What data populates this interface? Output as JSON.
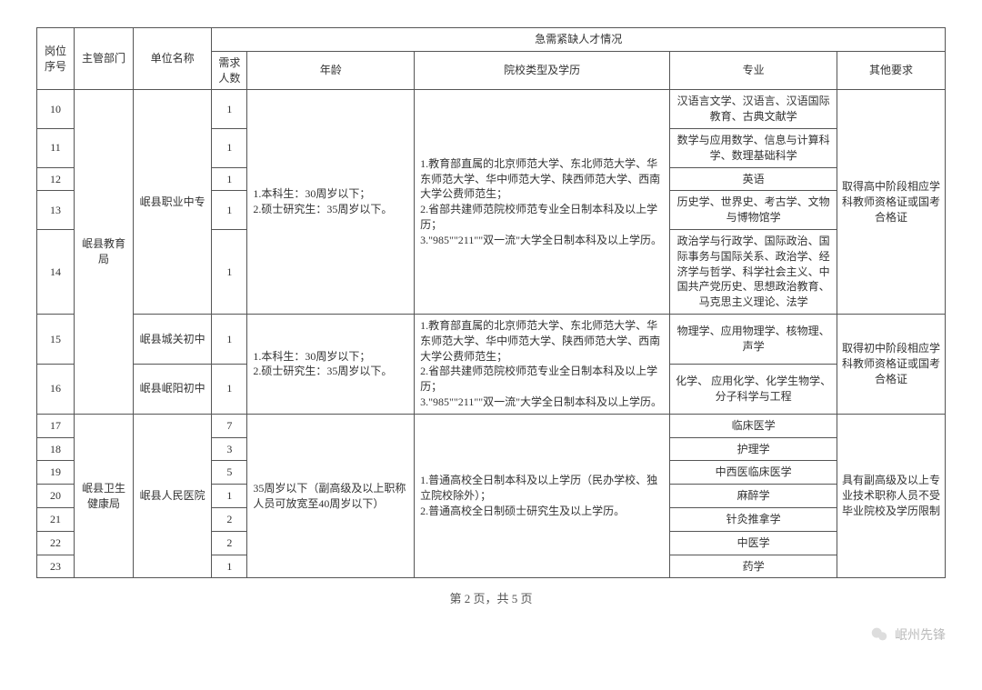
{
  "header": {
    "col_idx": "岗位序号",
    "col_dept": "主管部门",
    "col_unit": "单位名称",
    "group_title": "急需紧缺人才情况",
    "col_need": "需求人数",
    "col_age": "年龄",
    "col_school": "院校类型及学历",
    "col_major": "专业",
    "col_other": "其他要求"
  },
  "groupA": {
    "dept": "岷县教育局",
    "unit1": "岷县职业中专",
    "unit2": "岷县城关初中",
    "unit3": "岷县岷阳初中",
    "age_text": "1.本科生：30周岁以下；\n2.硕士研究生：35周岁以下。",
    "school_text": "1.教育部直属的北京师范大学、东北师范大学、华东师范大学、华中师范大学、陕西师范大学、西南大学公费师范生；\n2.省部共建师范院校师范专业全日制本科及以上学历；\n3.\"985\"\"211\"\"双一流\"大学全日制本科及以上学历。",
    "other_text1": "取得高中阶段相应学科教师资格证或国考合格证",
    "other_text2": "取得初中阶段相应学科教师资格证或国考合格证",
    "rows": [
      {
        "idx": "10",
        "need": "1",
        "major": "汉语言文学、汉语言、汉语国际教育、古典文献学"
      },
      {
        "idx": "11",
        "need": "1",
        "major": "数学与应用数学、信息与计算科学、数理基础科学"
      },
      {
        "idx": "12",
        "need": "1",
        "major": "英语"
      },
      {
        "idx": "13",
        "need": "1",
        "major": "历史学、世界史、考古学、文物与博物馆学"
      },
      {
        "idx": "14",
        "need": "1",
        "major": "政治学与行政学、国际政治、国际事务与国际关系、政治学、经济学与哲学、科学社会主义、中国共产党历史、思想政治教育、马克思主义理论、法学"
      },
      {
        "idx": "15",
        "need": "1",
        "major": "物理学、应用物理学、核物理、声学"
      },
      {
        "idx": "16",
        "need": "1",
        "major": "化学、 应用化学、化学生物学、分子科学与工程"
      }
    ]
  },
  "groupB": {
    "dept": "岷县卫生健康局",
    "unit": "岷县人民医院",
    "age_text": "35周岁以下（副高级及以上职称人员可放宽至40周岁以下）",
    "school_text": "1.普通高校全日制本科及以上学历（民办学校、独立院校除外）；\n2.普通高校全日制硕士研究生及以上学历。",
    "other_text": "具有副高级及以上专业技术职称人员不受毕业院校及学历限制",
    "rows": [
      {
        "idx": "17",
        "need": "7",
        "major": "临床医学"
      },
      {
        "idx": "18",
        "need": "3",
        "major": "护理学"
      },
      {
        "idx": "19",
        "need": "5",
        "major": "中西医临床医学"
      },
      {
        "idx": "20",
        "need": "1",
        "major": "麻醉学"
      },
      {
        "idx": "21",
        "need": "2",
        "major": "针灸推拿学"
      },
      {
        "idx": "22",
        "need": "2",
        "major": "中医学"
      },
      {
        "idx": "23",
        "need": "1",
        "major": "药学"
      }
    ]
  },
  "footer": "第 2 页，共 5 页",
  "watermark": "岷州先锋"
}
